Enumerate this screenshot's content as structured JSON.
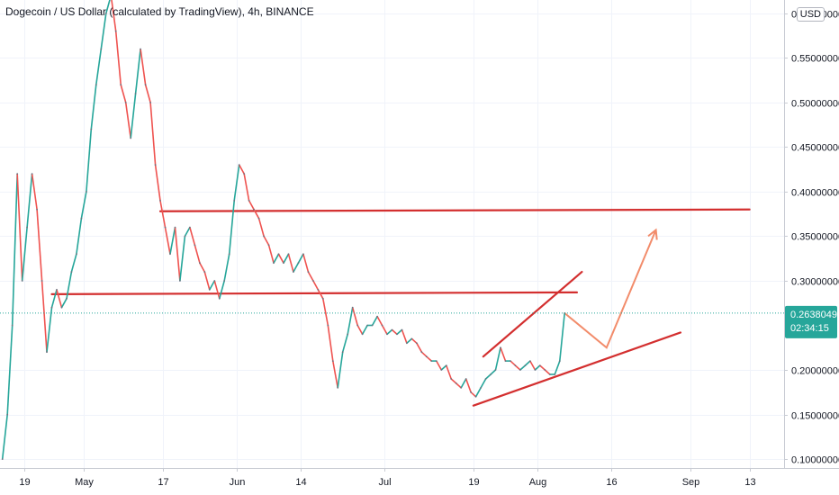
{
  "header": {
    "title": "Dogecoin / US Dollar (calculated by TradingView), 4h, BINANCE",
    "currency": "USD"
  },
  "price_tag": {
    "price": "0.26380492",
    "countdown": "02:34:15",
    "color": "#26a69a"
  },
  "colors": {
    "up": "#26a69a",
    "down": "#ef5350",
    "line": "#d32f2f",
    "arrow": "#f28c6b"
  },
  "chart_data": {
    "type": "line",
    "title": "Dogecoin / US Dollar (calculated by TradingView), 4h, BINANCE",
    "xlabel": "",
    "ylabel": "",
    "ylim": [
      0.09,
      0.615
    ],
    "y_ticks": [
      {
        "label": "0.60000000",
        "value": 0.6
      },
      {
        "label": "0.55000000",
        "value": 0.55
      },
      {
        "label": "0.50000000",
        "value": 0.5
      },
      {
        "label": "0.45000000",
        "value": 0.45
      },
      {
        "label": "0.40000000",
        "value": 0.4
      },
      {
        "label": "0.35000000",
        "value": 0.35
      },
      {
        "label": "0.30000000",
        "value": 0.3
      },
      {
        "label": "0.20000000",
        "value": 0.2
      },
      {
        "label": "0.15000000",
        "value": 0.15
      },
      {
        "label": "0.10000000",
        "value": 0.1
      }
    ],
    "x_ticks": [
      {
        "label": "19",
        "day": 0
      },
      {
        "label": "May",
        "day": 12
      },
      {
        "label": "17",
        "day": 28
      },
      {
        "label": "Jun",
        "day": 43
      },
      {
        "label": "14",
        "day": 56
      },
      {
        "label": "Jul",
        "day": 73
      },
      {
        "label": "19",
        "day": 91
      },
      {
        "label": "Aug",
        "day": 104
      },
      {
        "label": "16",
        "day": 119
      },
      {
        "label": "Sep",
        "day": 135
      },
      {
        "label": "13",
        "day": 147
      }
    ],
    "xlim": [
      -5,
      154
    ],
    "grid": true,
    "series": [
      {
        "values": [
          [
            -4.5,
            0.1
          ],
          [
            -3.5,
            0.15
          ],
          [
            -2.5,
            0.25
          ],
          [
            -1.5,
            0.42
          ],
          [
            -0.5,
            0.3
          ],
          [
            0.5,
            0.36
          ],
          [
            1.5,
            0.42
          ],
          [
            2.5,
            0.38
          ],
          [
            3.5,
            0.3
          ],
          [
            4.5,
            0.22
          ],
          [
            5.5,
            0.27
          ],
          [
            6.5,
            0.29
          ],
          [
            7.5,
            0.27
          ],
          [
            8.5,
            0.28
          ],
          [
            9.5,
            0.31
          ],
          [
            10.5,
            0.33
          ],
          [
            11.5,
            0.37
          ],
          [
            12.5,
            0.4
          ],
          [
            13.5,
            0.47
          ],
          [
            14.5,
            0.52
          ],
          [
            15.5,
            0.56
          ],
          [
            16.5,
            0.6
          ],
          [
            17.5,
            0.62
          ],
          [
            18.5,
            0.58
          ],
          [
            19.5,
            0.52
          ],
          [
            20.5,
            0.5
          ],
          [
            21.5,
            0.46
          ],
          [
            22.5,
            0.51
          ],
          [
            23.5,
            0.56
          ],
          [
            24.5,
            0.52
          ],
          [
            25.5,
            0.5
          ],
          [
            26.5,
            0.43
          ],
          [
            27.5,
            0.39
          ],
          [
            28.5,
            0.36
          ],
          [
            29.5,
            0.33
          ],
          [
            30.5,
            0.36
          ],
          [
            31.5,
            0.3
          ],
          [
            32.5,
            0.35
          ],
          [
            33.5,
            0.36
          ],
          [
            34.5,
            0.34
          ],
          [
            35.5,
            0.32
          ],
          [
            36.5,
            0.31
          ],
          [
            37.5,
            0.29
          ],
          [
            38.5,
            0.3
          ],
          [
            39.5,
            0.28
          ],
          [
            40.5,
            0.3
          ],
          [
            41.5,
            0.33
          ],
          [
            42.5,
            0.39
          ],
          [
            43.5,
            0.43
          ],
          [
            44.5,
            0.42
          ],
          [
            45.5,
            0.39
          ],
          [
            46.5,
            0.38
          ],
          [
            47.5,
            0.37
          ],
          [
            48.5,
            0.35
          ],
          [
            49.5,
            0.34
          ],
          [
            50.5,
            0.32
          ],
          [
            51.5,
            0.33
          ],
          [
            52.5,
            0.32
          ],
          [
            53.5,
            0.33
          ],
          [
            54.5,
            0.31
          ],
          [
            55.5,
            0.32
          ],
          [
            56.5,
            0.33
          ],
          [
            57.5,
            0.31
          ],
          [
            58.5,
            0.3
          ],
          [
            59.5,
            0.29
          ],
          [
            60.5,
            0.28
          ],
          [
            61.5,
            0.25
          ],
          [
            62.5,
            0.21
          ],
          [
            63.5,
            0.18
          ],
          [
            64.5,
            0.22
          ],
          [
            65.5,
            0.24
          ],
          [
            66.5,
            0.27
          ],
          [
            67.5,
            0.25
          ],
          [
            68.5,
            0.24
          ],
          [
            69.5,
            0.25
          ],
          [
            70.5,
            0.25
          ],
          [
            71.5,
            0.26
          ],
          [
            72.5,
            0.25
          ],
          [
            73.5,
            0.24
          ],
          [
            74.5,
            0.245
          ],
          [
            75.5,
            0.24
          ],
          [
            76.5,
            0.245
          ],
          [
            77.5,
            0.23
          ],
          [
            78.5,
            0.235
          ],
          [
            79.5,
            0.23
          ],
          [
            80.5,
            0.22
          ],
          [
            81.5,
            0.215
          ],
          [
            82.5,
            0.21
          ],
          [
            83.5,
            0.21
          ],
          [
            84.5,
            0.2
          ],
          [
            85.5,
            0.205
          ],
          [
            86.5,
            0.19
          ],
          [
            87.5,
            0.185
          ],
          [
            88.5,
            0.18
          ],
          [
            89.5,
            0.19
          ],
          [
            90.5,
            0.175
          ],
          [
            91.5,
            0.17
          ],
          [
            92.5,
            0.18
          ],
          [
            93.5,
            0.19
          ],
          [
            94.5,
            0.195
          ],
          [
            95.5,
            0.2
          ],
          [
            96.5,
            0.225
          ],
          [
            97.5,
            0.21
          ],
          [
            98.5,
            0.21
          ],
          [
            99.5,
            0.205
          ],
          [
            100.5,
            0.2
          ],
          [
            101.5,
            0.205
          ],
          [
            102.5,
            0.21
          ],
          [
            103.5,
            0.2
          ],
          [
            104.5,
            0.205
          ],
          [
            105.5,
            0.2
          ],
          [
            106.5,
            0.195
          ],
          [
            107.5,
            0.195
          ],
          [
            108.5,
            0.21
          ],
          [
            109.5,
            0.2638
          ]
        ]
      }
    ],
    "annotations": [
      {
        "kind": "line",
        "from": [
          27.5,
          0.378
        ],
        "to": [
          147,
          0.38
        ]
      },
      {
        "kind": "line",
        "from": [
          5.5,
          0.285
        ],
        "to": [
          112,
          0.287
        ]
      },
      {
        "kind": "line",
        "from": [
          93,
          0.215
        ],
        "to": [
          113,
          0.31
        ]
      },
      {
        "kind": "line",
        "from": [
          91,
          0.16
        ],
        "to": [
          133,
          0.242
        ]
      },
      {
        "kind": "arrow",
        "points": [
          [
            109.5,
            0.2638
          ],
          [
            118,
            0.225
          ],
          [
            128,
            0.357
          ]
        ]
      }
    ]
  }
}
